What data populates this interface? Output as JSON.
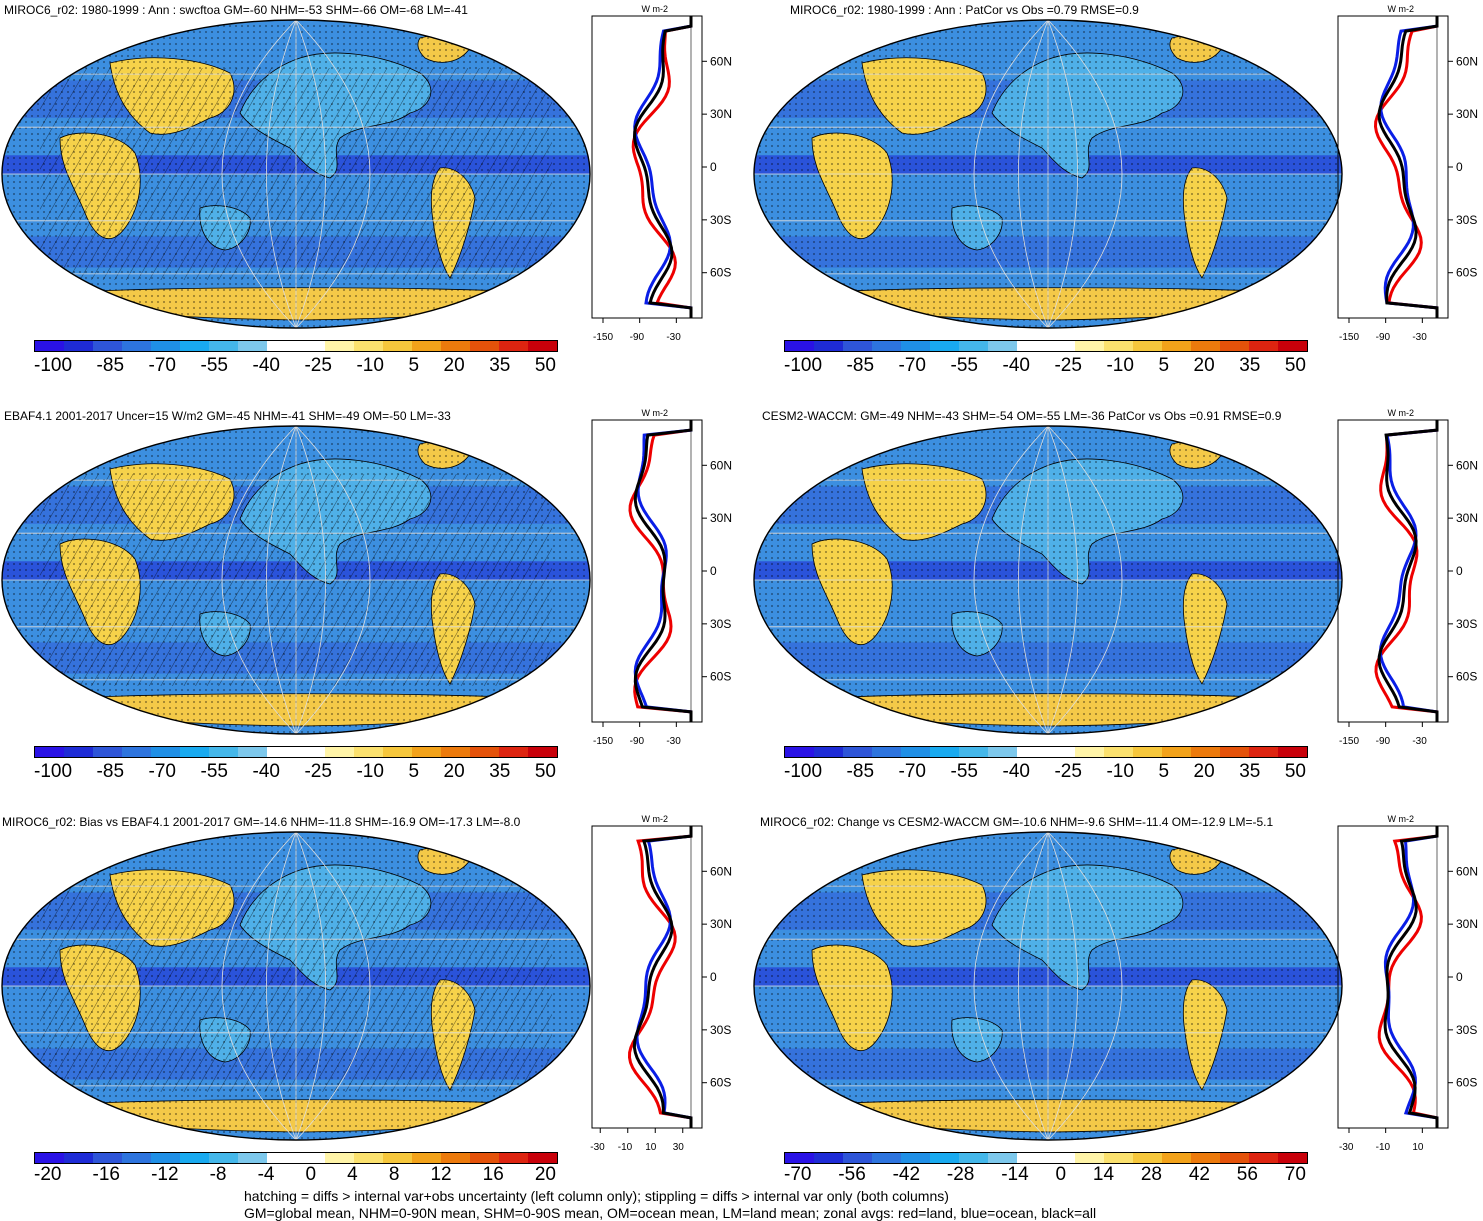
{
  "panels": [
    {
      "id": "p1",
      "title": "MIROC6_r02: 1980-1999 : Ann : swcftoa GM=-60 NHM=-53 SHM=-66 OM=-68 LM=-41",
      "cbar": [
        "-100",
        "-85",
        "-70",
        "-55",
        "-40",
        "-25",
        "-10",
        "5",
        "20",
        "35",
        "50"
      ],
      "zonal_x": [
        "-150",
        "-90",
        "-30"
      ],
      "hatched": true
    },
    {
      "id": "p2",
      "title": "MIROC6_r02: 1980-1999 : Ann : PatCor vs Obs =0.79 RMSE=0.9",
      "cbar": [
        "-100",
        "-85",
        "-70",
        "-55",
        "-40",
        "-25",
        "-10",
        "5",
        "20",
        "35",
        "50"
      ],
      "zonal_x": [
        "-150",
        "-90",
        "-30"
      ],
      "hatched": false
    },
    {
      "id": "p3",
      "title": "EBAF4.1 2001-2017 Uncer=15 W/m2 GM=-45 NHM=-41 SHM=-49 OM=-50 LM=-33",
      "cbar": [
        "-100",
        "-85",
        "-70",
        "-55",
        "-40",
        "-25",
        "-10",
        "5",
        "20",
        "35",
        "50"
      ],
      "zonal_x": [
        "-150",
        "-90",
        "-30"
      ],
      "hatched": true
    },
    {
      "id": "p4",
      "title": "CESM2-WACCM: GM=-49 NHM=-43 SHM=-54 OM=-55 LM=-36 PatCor vs Obs =0.91 RMSE=0.9",
      "cbar": [
        "-100",
        "-85",
        "-70",
        "-55",
        "-40",
        "-25",
        "-10",
        "5",
        "20",
        "35",
        "50"
      ],
      "zonal_x": [
        "-150",
        "-90",
        "-30"
      ],
      "hatched": false
    },
    {
      "id": "p5",
      "title": "MIROC6_r02: Bias vs EBAF4.1 2001-2017 GM=-14.6 NHM=-11.8 SHM=-16.9 OM=-17.3 LM=-8.0",
      "cbar": [
        "-20",
        "-16",
        "-12",
        "-8",
        "-4",
        "0",
        "4",
        "8",
        "12",
        "16",
        "20"
      ],
      "zonal_x": [
        "-30",
        "-10",
        "10",
        "30"
      ],
      "hatched": true
    },
    {
      "id": "p6",
      "title": "MIROC6_r02: Change vs CESM2-WACCM GM=-10.6 NHM=-9.6 SHM=-11.4 OM=-12.9 LM=-5.1",
      "cbar": [
        "-70",
        "-56",
        "-42",
        "-28",
        "-14",
        "0",
        "14",
        "28",
        "42",
        "56",
        "70"
      ],
      "zonal_x": [
        "-30",
        "-10",
        "10"
      ],
      "hatched": false
    }
  ],
  "lat_labels": [
    "60N",
    "30N",
    "0",
    "30S",
    "60S"
  ],
  "units_label": "W m-2",
  "colors": {
    "scale": [
      "#2a12e6",
      "#1e2bd6",
      "#2e55d8",
      "#2d74de",
      "#1f8fe6",
      "#19aaf0",
      "#44b7ea",
      "#7dc8ec",
      "#ffffff",
      "#ffffff",
      "#fff4a8",
      "#fbe16e",
      "#f6c73c",
      "#f2a21a",
      "#ec7a0c",
      "#e4520a",
      "#dd2410",
      "#c8000a"
    ],
    "ocean": "#3c8fe0",
    "land": "#4fb0e8",
    "desert": "#f6d24a",
    "ice": "#f4c948",
    "line_land": "#ee0000",
    "line_ocean": "#0a1ee6",
    "line_all": "#000000"
  },
  "footer": [
    "hatching = diffs > internal var+obs uncertainty (left column only); stippling = diffs > internal var only (both columns)",
    "GM=global mean, NHM=0-90N mean, SHM=0-90S mean, OM=ocean mean, LM=land mean; zonal avgs: red=land, blue=ocean, black=all"
  ]
}
